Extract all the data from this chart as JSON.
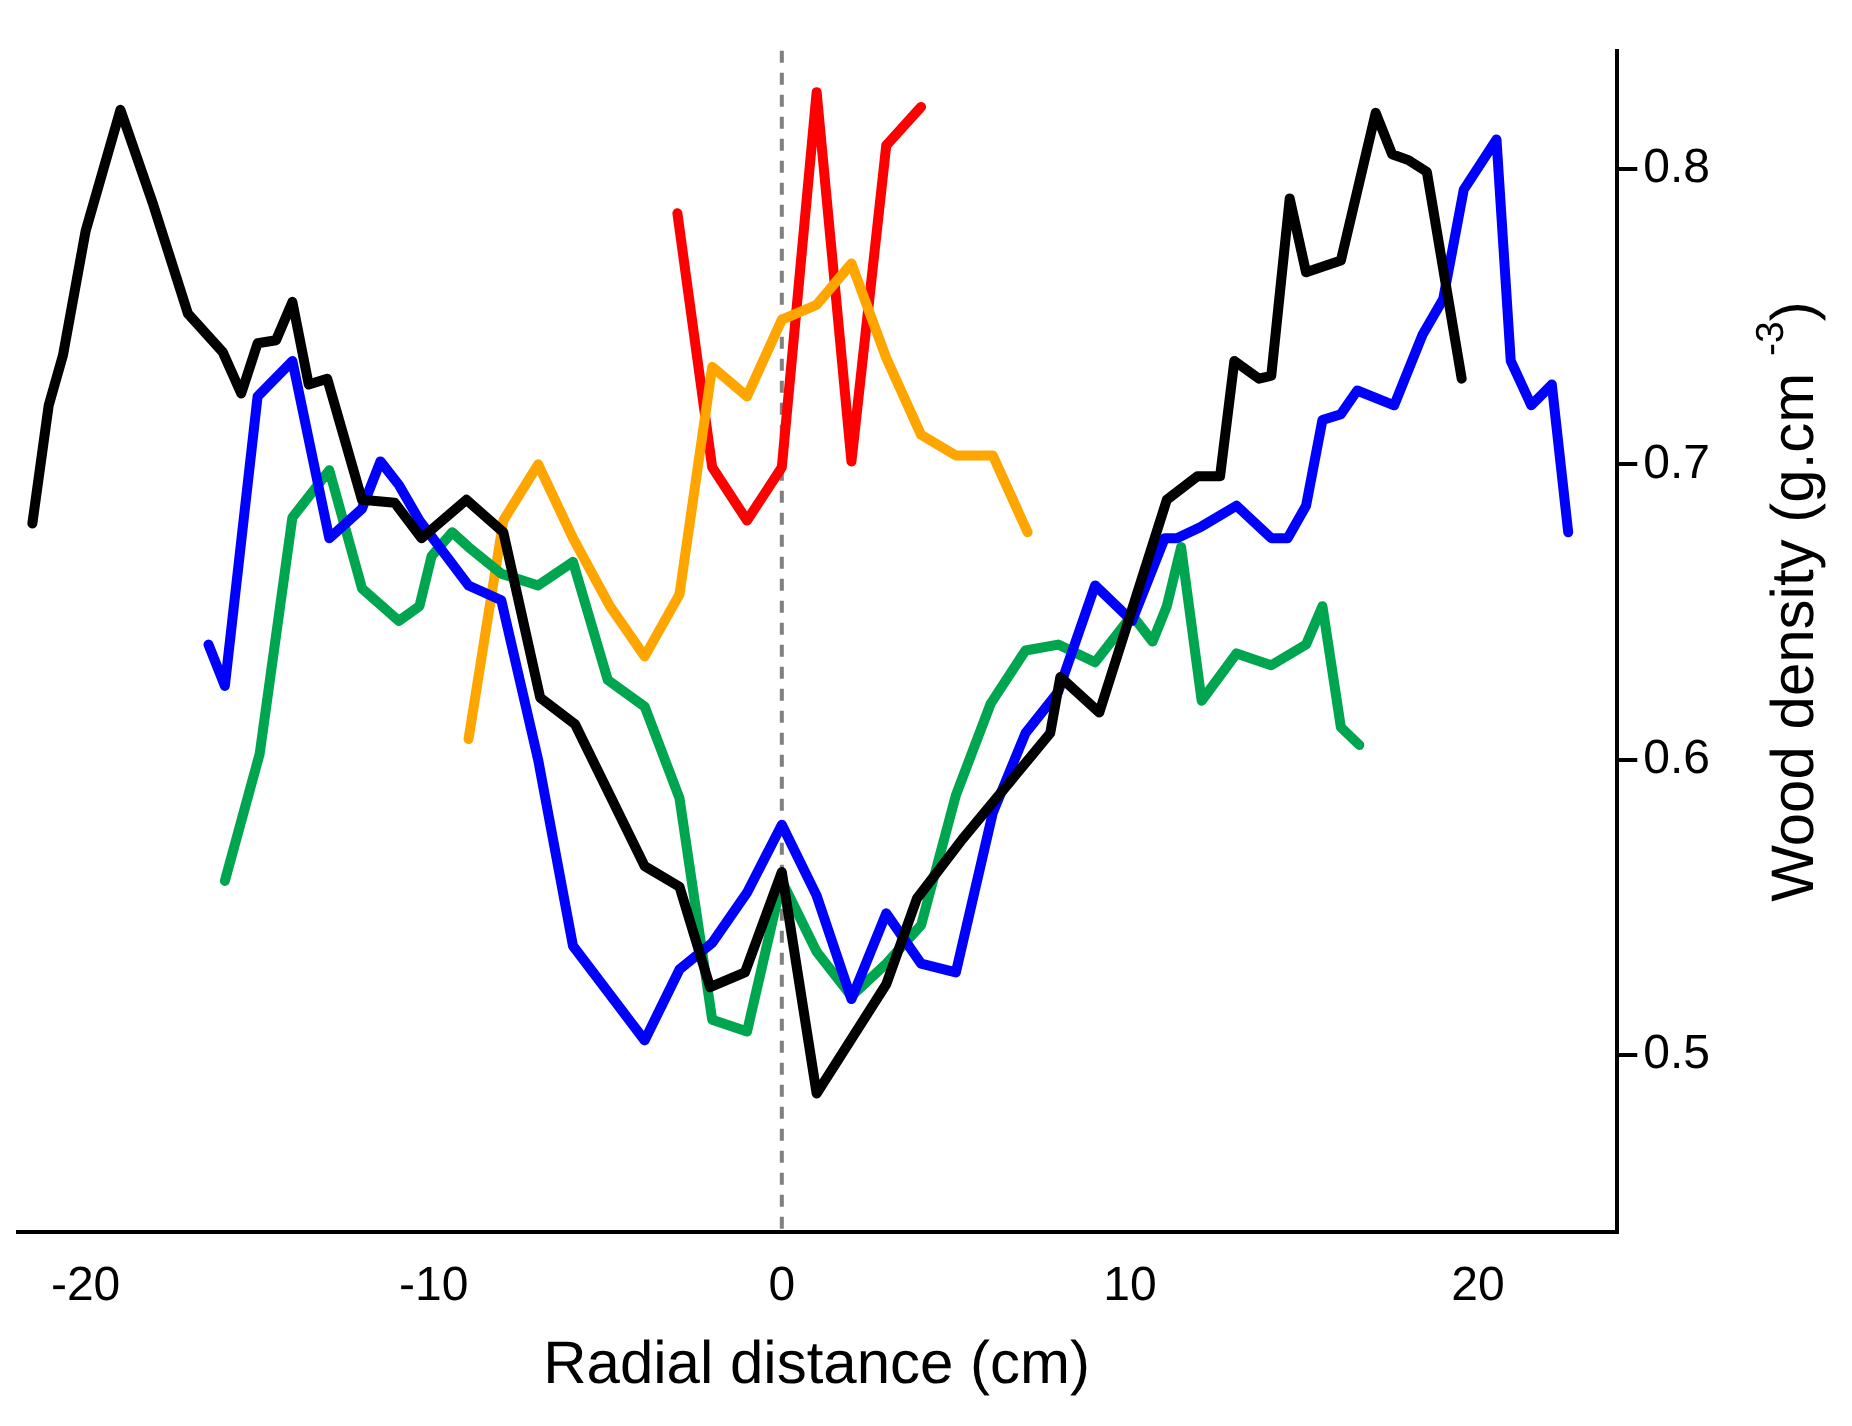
{
  "chart_data": {
    "type": "line",
    "xlabel": "Radial distance (cm)",
    "ylabel": "Wood density (g.cm $^{-3}$)",
    "xlim": [
      -22,
      24
    ],
    "ylim": [
      0.44,
      0.84
    ],
    "xticks": [
      -20,
      -10,
      0,
      10,
      20
    ],
    "yticks": [
      0.5,
      0.6,
      0.7,
      0.8
    ],
    "grid": false,
    "legend": false,
    "marker": "none",
    "line_style": "solid",
    "ref_lines": [
      {
        "axis": "x",
        "value": 0,
        "color": "#808080",
        "line_style": "dashed"
      }
    ],
    "series": [
      {
        "color": "#000000",
        "x": [
          -21.53,
          -21.06,
          -20.65,
          -20.0,
          -19.0,
          -18.06,
          -17.06,
          -16.06,
          -15.53,
          -15.06,
          -14.53,
          -14.06,
          -13.59,
          -13.06,
          -12.06,
          -11.12,
          -10.35,
          -9.06,
          -8.0,
          -6.94,
          -5.94,
          -3.94,
          -2.94,
          -2.06,
          -1.06,
          0,
          1.0,
          3.0,
          3.88,
          5.18,
          7.71,
          8.0,
          9.12,
          11.06,
          11.94,
          12.59,
          13.0,
          13.71,
          14.06,
          14.59,
          15.06,
          16.06,
          17.06,
          17.53,
          18.0,
          18.53,
          19.53
        ],
        "values": [
          0.68,
          0.72,
          0.737,
          0.779,
          0.82,
          0.788,
          0.751,
          0.738,
          0.724,
          0.741,
          0.742,
          0.755,
          0.727,
          0.729,
          0.688,
          0.687,
          0.675,
          0.688,
          0.677,
          0.621,
          0.612,
          0.564,
          0.557,
          0.523,
          0.528,
          0.562,
          0.487,
          0.524,
          0.553,
          0.573,
          0.609,
          0.628,
          0.616,
          0.688,
          0.696,
          0.696,
          0.735,
          0.729,
          0.73,
          0.79,
          0.765,
          0.769,
          0.819,
          0.805,
          0.803,
          0.799,
          0.729
        ]
      },
      {
        "color": "#0000ff",
        "x": [
          -16.47,
          -16.0,
          -15.06,
          -14.06,
          -13.0,
          -12.06,
          -11.53,
          -11.0,
          -10.41,
          -9.0,
          -8.06,
          -7.0,
          -6.0,
          -3.94,
          -2.94,
          -2.0,
          -1.0,
          0,
          1.0,
          2.0,
          3.0,
          4.0,
          5.0,
          6.06,
          7.0,
          7.94,
          9.0,
          10.06,
          11.0,
          11.35,
          12.06,
          13.06,
          14.06,
          14.53,
          15.06,
          15.53,
          16.06,
          16.53,
          17.59,
          18.41,
          19.0,
          19.59,
          20.53,
          20.94,
          21.53,
          22.12,
          22.59
        ],
        "values": [
          0.639,
          0.625,
          0.723,
          0.735,
          0.675,
          0.685,
          0.701,
          0.693,
          0.681,
          0.659,
          0.654,
          0.6,
          0.537,
          0.505,
          0.529,
          0.538,
          0.555,
          0.578,
          0.554,
          0.519,
          0.548,
          0.531,
          0.528,
          0.582,
          0.609,
          0.623,
          0.659,
          0.647,
          0.675,
          0.675,
          0.679,
          0.686,
          0.675,
          0.675,
          0.686,
          0.715,
          0.717,
          0.725,
          0.72,
          0.744,
          0.756,
          0.793,
          0.81,
          0.735,
          0.72,
          0.727,
          0.677
        ]
      },
      {
        "color": "#00a550",
        "x": [
          -16.0,
          -15.0,
          -14.06,
          -13.0,
          -12.06,
          -11.0,
          -10.41,
          -10.06,
          -9.47,
          -9.0,
          -8.06,
          -7.0,
          -6.0,
          -5.0,
          -3.94,
          -2.94,
          -2.0,
          -1.0,
          0,
          1.0,
          2.0,
          3.0,
          4.0,
          5.0,
          6.0,
          7.0,
          7.94,
          9.0,
          10.06,
          10.65,
          11.06,
          11.47,
          12.06,
          13.06,
          14.06,
          15.06,
          15.53,
          16.06,
          16.59
        ],
        "values": [
          0.559,
          0.602,
          0.682,
          0.698,
          0.658,
          0.647,
          0.652,
          0.669,
          0.677,
          0.672,
          0.663,
          0.659,
          0.667,
          0.627,
          0.618,
          0.587,
          0.512,
          0.508,
          0.559,
          0.535,
          0.52,
          0.531,
          0.544,
          0.588,
          0.619,
          0.637,
          0.639,
          0.633,
          0.649,
          0.64,
          0.652,
          0.672,
          0.62,
          0.636,
          0.632,
          0.639,
          0.652,
          0.611,
          0.605
        ]
      },
      {
        "color": "#ffa500",
        "x": [
          -9.0,
          -8.0,
          -7.0,
          -6.0,
          -4.94,
          -3.94,
          -2.94,
          -2.0,
          -1.0,
          0,
          1.0,
          2.0,
          3.0,
          4.0,
          5.0,
          6.06,
          7.06
        ],
        "values": [
          0.607,
          0.681,
          0.7,
          0.675,
          0.652,
          0.635,
          0.656,
          0.733,
          0.723,
          0.749,
          0.754,
          0.768,
          0.736,
          0.71,
          0.703,
          0.703,
          0.677
        ]
      },
      {
        "color": "#ff0000",
        "x": [
          -3.0,
          -2.0,
          -1.0,
          0,
          1.0,
          2.0,
          3.0,
          4.0
        ],
        "values": [
          0.785,
          0.699,
          0.681,
          0.699,
          0.826,
          0.701,
          0.808,
          0.821
        ]
      }
    ]
  }
}
